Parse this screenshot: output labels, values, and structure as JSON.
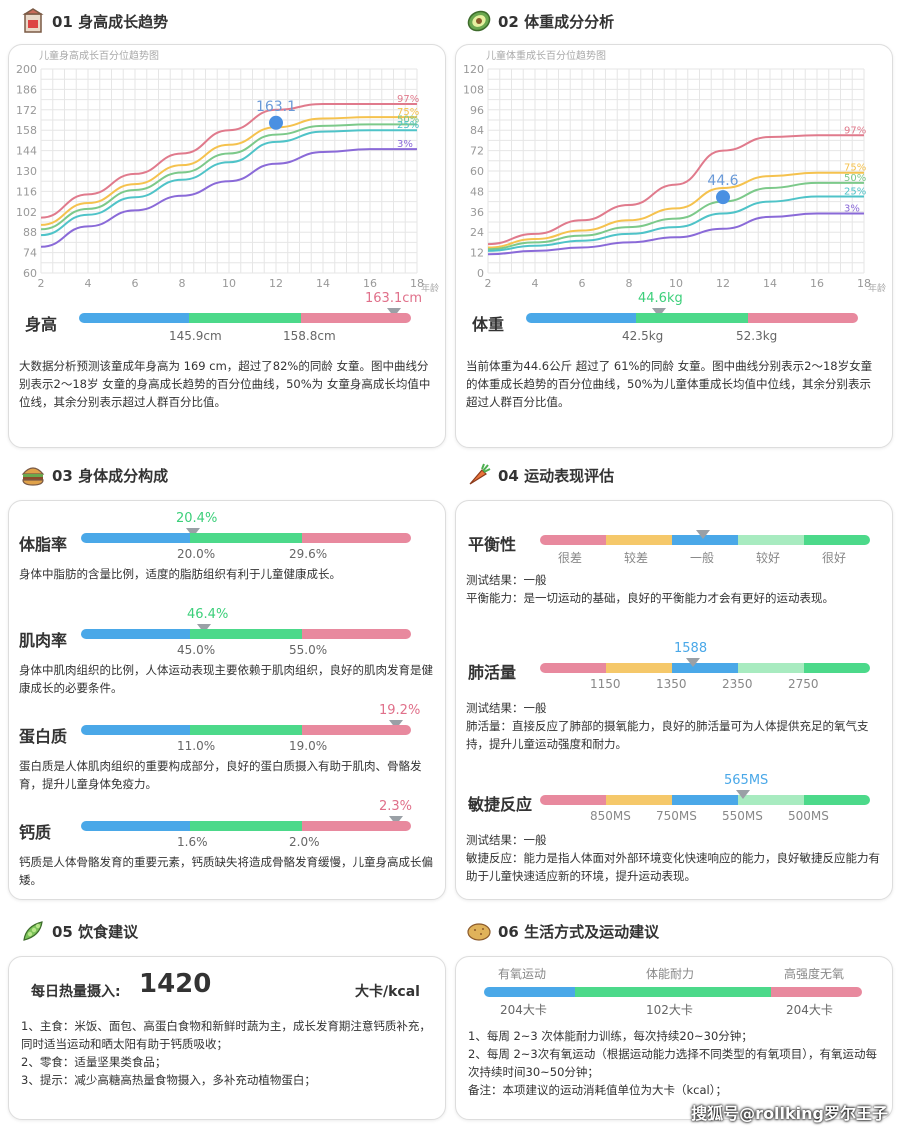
{
  "colors": {
    "blue": "#4aa8e8",
    "green": "#4cd98a",
    "pink": "#e8899e",
    "yellow": "#f5c86a",
    "lightgreen": "#a8ebc0"
  },
  "s1": {
    "title": "01 身高成长趋势",
    "chart_caption": "儿童身高成长百分位趋势图",
    "label": "身高",
    "value_text": "163.1cm",
    "tick1": "145.9cm",
    "tick2": "158.8cm",
    "point_label": "163.1",
    "desc": "大数据分析预测该童成年身高为 169 cm，超过了82%的同龄 女童。图中曲线分别表示2～18岁 女童的身高成长趋势的百分位曲线，50%为 女童身高成长均值中位线，其余分别表示超过人群百分比值。"
  },
  "s2": {
    "title": "02 体重成分分析",
    "chart_caption": "儿童体重成长百分位趋势图",
    "label": "体重",
    "value_text": "44.6kg",
    "tick1": "42.5kg",
    "tick2": "52.3kg",
    "point_label": "44.6",
    "desc": "当前体重为44.6公斤 超过了 61%的同龄 女童。图中曲线分别表示2～18岁女童的体重成长趋势的百分位曲线，50%为儿童体重成长均值中位线，其余分别表示超过人群百分比值。"
  },
  "s3": {
    "title": "03 身体成分构成",
    "items": [
      {
        "label": "体脂率",
        "value": "20.4%",
        "t1": "20.0%",
        "t2": "29.6%",
        "desc": "身体中脂肪的含量比例，适度的脂肪组织有利于儿童健康成长。"
      },
      {
        "label": "肌肉率",
        "value": "46.4%",
        "t1": "45.0%",
        "t2": "55.0%",
        "desc": "身体中肌肉组织的比例，人体运动表现主要依赖于肌肉组织，良好的肌肉发育是健康成长的必要条件。"
      },
      {
        "label": "蛋白质",
        "value": "19.2%",
        "t1": "11.0%",
        "t2": "19.0%",
        "desc": "蛋白质是人体肌肉组织的重要构成部分，良好的蛋白质摄入有助于肌肉、骨骼发育，提升儿童身体免疫力。"
      },
      {
        "label": "钙质",
        "value": "2.3%",
        "t1": "1.6%",
        "t2": "2.0%",
        "desc": "钙质是人体骨骼发育的重要元素，钙质缺失将造成骨骼发育缓慢，儿童身高成长偏矮。"
      }
    ]
  },
  "s4": {
    "title": "04 运动表现评估",
    "items": [
      {
        "label": "平衡性",
        "ticks": [
          "很差",
          "较差",
          "一般",
          "较好",
          "很好"
        ],
        "value": "",
        "r1": "测试结果：一般",
        "r2": "平衡能力：是一切运动的基础，良好的平衡能力才会有更好的运动表现。"
      },
      {
        "label": "肺活量",
        "ticks": [
          "1150",
          "1350",
          "2350",
          "2750"
        ],
        "value": "1588",
        "r1": "测试结果：一般",
        "r2": "肺活量：直接反应了肺部的摄氧能力，良好的肺活量可为人体提供充足的氧气支持，提升儿童运动强度和耐力。"
      },
      {
        "label": "敏捷反应",
        "ticks": [
          "850MS",
          "750MS",
          "550MS",
          "500MS"
        ],
        "value": "565MS",
        "r1": "测试结果：一般",
        "r2": "敏捷反应：能力是指人体面对外部环境变化快速响应的能力，良好敏捷反应能力有助于儿童快速适应新的环境，提升运动表现。"
      }
    ]
  },
  "s5": {
    "title": "05 饮食建议",
    "kcal_label": "每日热量摄入:",
    "kcal_value": "1420",
    "unit": "大卡/kcal",
    "lines": [
      "1、主食：米饭、面包、高蛋白食物和新鲜时蔬为主，成长发育期注意钙质补充，同时适当运动和晒太阳有助于钙质吸收；",
      "2、零食：适量坚果类食品；",
      "3、提示：减少高糖高热量食物摄入，多补充动植物蛋白；"
    ]
  },
  "s6": {
    "title": "06 生活方式及运动建议",
    "cats": [
      "有氧运动",
      "体能耐力",
      "高强度无氧"
    ],
    "vals": [
      "204大卡",
      "102大卡",
      "204大卡"
    ],
    "lines": [
      "1、每周 2~3 次体能耐力训练，每次持续20~30分钟；",
      "2、每周 2~3次有氧运动（根据运动能力选择不同类型的有氧项目），有氧运动每次持续时间30~50分钟；",
      "备注：本项建议的运动消耗值单位为大卡（kcal）；"
    ]
  },
  "height_chart": {
    "y_ticks": [
      "200",
      "186",
      "172",
      "158",
      "144",
      "130",
      "116",
      "102",
      "88",
      "74",
      "60"
    ],
    "x_ticks": [
      "2",
      "4",
      "6",
      "8",
      "10",
      "12",
      "14",
      "16",
      "18"
    ],
    "x_unit": "年龄",
    "pct": [
      "97%",
      "75%",
      "50%",
      "25%",
      "3%"
    ]
  },
  "weight_chart": {
    "y_ticks": [
      "120",
      "108",
      "96",
      "84",
      "72",
      "60",
      "48",
      "36",
      "24",
      "12",
      "0"
    ],
    "x_ticks": [
      "2",
      "4",
      "6",
      "8",
      "10",
      "12",
      "14",
      "16",
      "18"
    ],
    "x_unit": "年龄",
    "pct": [
      "97%",
      "75%",
      "50%",
      "25%",
      "3%"
    ]
  },
  "chart_data": [
    {
      "type": "line",
      "title": "儿童身高成长百分位趋势图",
      "xlabel": "年龄",
      "ylim": [
        60,
        200
      ],
      "xlim": [
        2,
        18
      ],
      "x": [
        2,
        4,
        6,
        8,
        10,
        12,
        14,
        16,
        18
      ],
      "series": [
        {
          "name": "97%",
          "values": [
            98,
            114,
            128,
            142,
            158,
            172,
            176,
            176,
            176
          ]
        },
        {
          "name": "75%",
          "values": [
            93,
            108,
            121,
            134,
            148,
            160,
            166,
            167,
            167
          ]
        },
        {
          "name": "50%",
          "values": [
            90,
            104,
            117,
            129,
            142,
            155,
            161,
            162,
            162
          ]
        },
        {
          "name": "25%",
          "values": [
            86,
            100,
            112,
            124,
            136,
            150,
            157,
            158,
            158
          ]
        },
        {
          "name": "3%",
          "values": [
            78,
            92,
            103,
            113,
            123,
            135,
            143,
            145,
            145
          ]
        }
      ],
      "point": {
        "x": 12,
        "y": 163.1
      }
    },
    {
      "type": "line",
      "title": "儿童体重成长百分位趋势图",
      "xlabel": "年龄",
      "ylim": [
        0,
        120
      ],
      "xlim": [
        2,
        18
      ],
      "x": [
        2,
        4,
        6,
        8,
        10,
        12,
        14,
        16,
        18
      ],
      "series": [
        {
          "name": "97%",
          "values": [
            17,
            23,
            31,
            40,
            52,
            72,
            80,
            81,
            81
          ]
        },
        {
          "name": "75%",
          "values": [
            15,
            20,
            25,
            31,
            38,
            50,
            57,
            59,
            59
          ]
        },
        {
          "name": "50%",
          "values": [
            14,
            18,
            22,
            27,
            32,
            42,
            50,
            53,
            53
          ]
        },
        {
          "name": "25%",
          "values": [
            13,
            16,
            19,
            23,
            27,
            35,
            42,
            45,
            45
          ]
        },
        {
          "name": "3%",
          "values": [
            11,
            13,
            15,
            18,
            21,
            26,
            33,
            35,
            35
          ]
        }
      ],
      "point": {
        "x": 12,
        "y": 44.6
      }
    }
  ],
  "watermark": "搜狐号@rollking罗尔王子"
}
